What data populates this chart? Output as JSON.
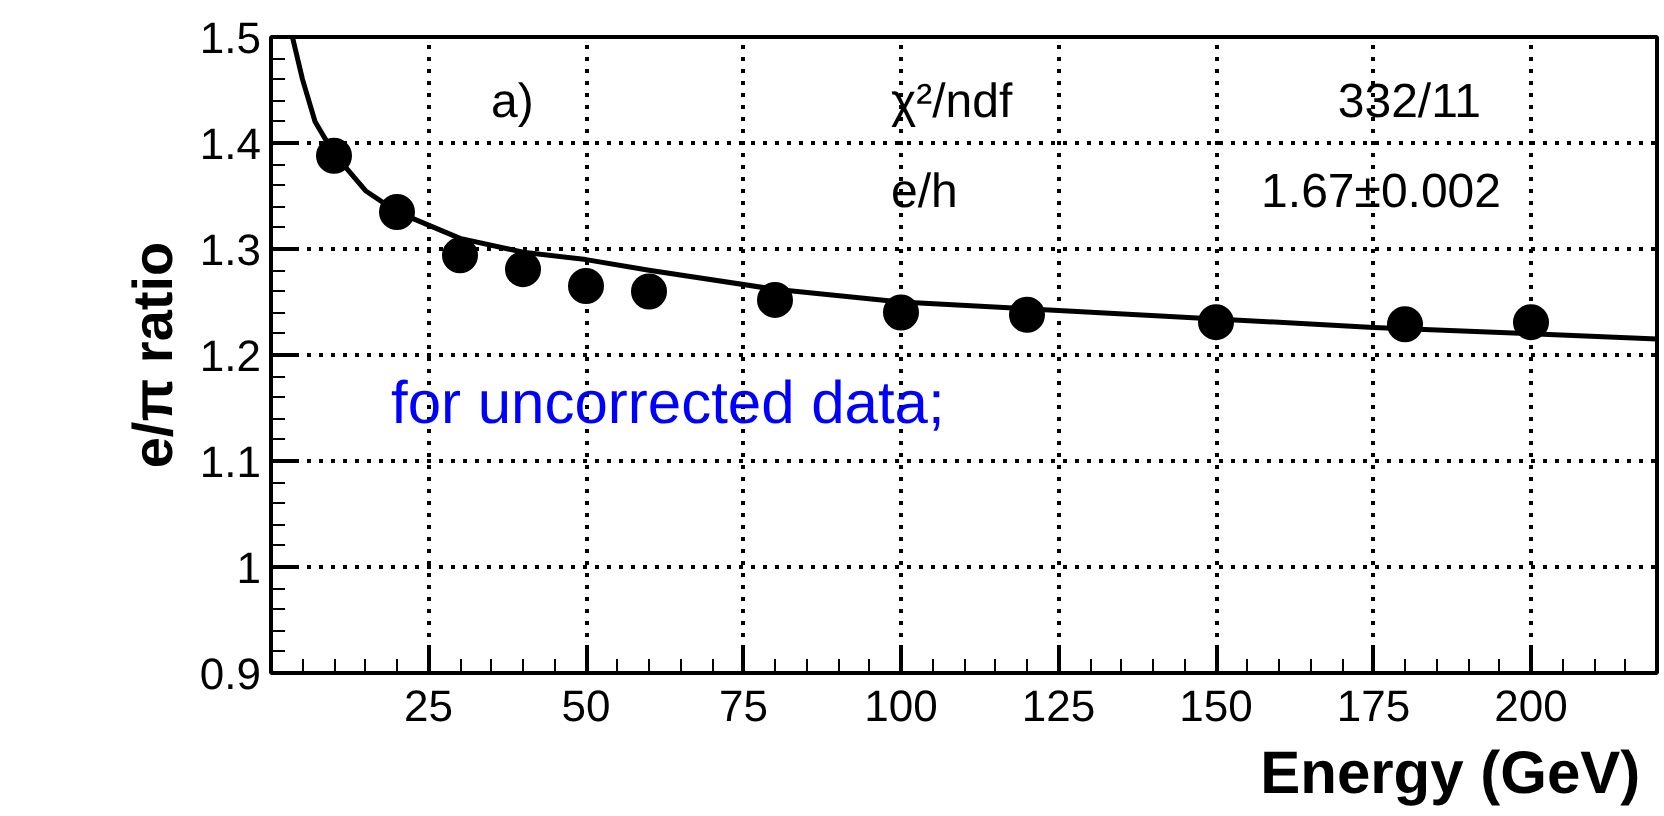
{
  "chart_data": {
    "type": "scatter",
    "xlabel": "Energy  (GeV)",
    "ylabel": "e/π ratio",
    "xlim": [
      0,
      220
    ],
    "ylim": [
      0.9,
      1.5
    ],
    "xticks": [
      25,
      50,
      75,
      100,
      125,
      150,
      175,
      200
    ],
    "yticks": [
      0.9,
      1,
      1.1,
      1.2,
      1.3,
      1.4,
      1.5
    ],
    "grid": true,
    "marker": "circle",
    "series": [
      {
        "color": "#000000",
        "x": [
          10,
          20,
          30,
          40,
          50,
          60,
          80,
          100,
          120,
          150,
          180,
          200
        ],
        "values": [
          1.388,
          1.335,
          1.294,
          1.281,
          1.265,
          1.26,
          1.252,
          1.24,
          1.238,
          1.231,
          1.229,
          1.231
        ]
      },
      {
        "type": "line",
        "color": "#000000",
        "line_style": "solid",
        "marker": "none",
        "x": [
          3.4,
          5,
          7,
          10,
          15,
          20,
          30,
          40,
          50,
          60,
          80,
          100,
          125,
          150,
          175,
          200,
          220
        ],
        "values": [
          1.5,
          1.46,
          1.42,
          1.39,
          1.355,
          1.335,
          1.31,
          1.297,
          1.29,
          1.28,
          1.262,
          1.25,
          1.242,
          1.234,
          1.226,
          1.22,
          1.215
        ]
      }
    ],
    "annotations": [
      "a)",
      "χ²/ndf",
      "332/11",
      "e/h",
      "1.67±0.002",
      "for uncorrected data;"
    ]
  }
}
